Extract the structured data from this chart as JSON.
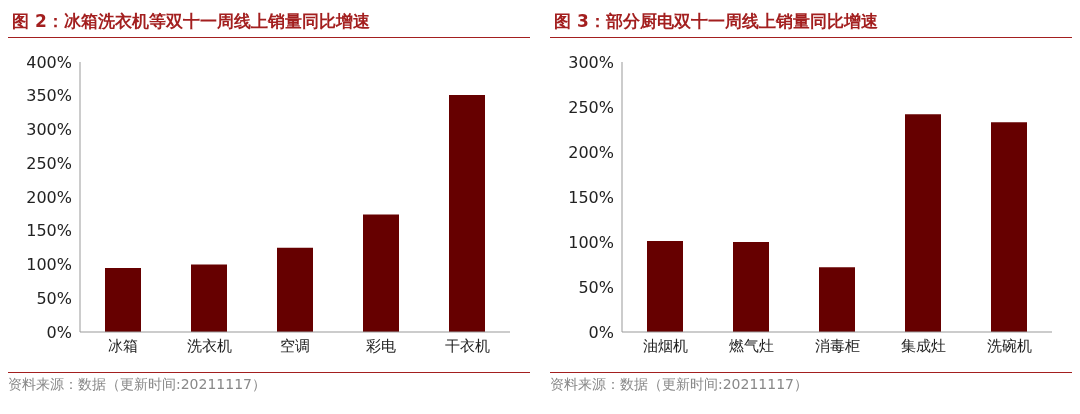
{
  "chart_data": [
    {
      "type": "bar",
      "title": "图 2：冰箱洗衣机等双十一周线上销量同比增速",
      "categories": [
        "冰箱",
        "洗衣机",
        "空调",
        "彩电",
        "干衣机"
      ],
      "values": [
        95,
        100,
        125,
        174,
        351
      ],
      "color": "#660000",
      "ylim": [
        0,
        400
      ],
      "yticks": [
        {
          "value": 0,
          "label": "0%"
        },
        {
          "value": 50,
          "label": "50%"
        },
        {
          "value": 100,
          "label": "100%"
        },
        {
          "value": 150,
          "label": "150%"
        },
        {
          "value": 200,
          "label": "200%"
        },
        {
          "value": 250,
          "label": "250%"
        },
        {
          "value": 300,
          "label": "300%"
        },
        {
          "value": 350,
          "label": "350%"
        },
        {
          "value": 400,
          "label": "400%"
        }
      ],
      "annotations": [
        "资料来源：数据（更新时间:20211117）"
      ]
    },
    {
      "type": "bar",
      "title": "图 3：部分厨电双十一周线上销量同比增速",
      "categories": [
        "油烟机",
        "燃气灶",
        "消毒柜",
        "集成灶",
        "洗碗机"
      ],
      "values": [
        101,
        100,
        72,
        242,
        233
      ],
      "color": "#660000",
      "ylim": [
        0,
        300
      ],
      "yticks": [
        {
          "value": 0,
          "label": "0%"
        },
        {
          "value": 50,
          "label": "50%"
        },
        {
          "value": 100,
          "label": "100%"
        },
        {
          "value": 150,
          "label": "150%"
        },
        {
          "value": 200,
          "label": "200%"
        },
        {
          "value": 250,
          "label": "250%"
        },
        {
          "value": 300,
          "label": "300%"
        }
      ],
      "annotations": [
        "资料来源：数据（更新时间:20211117）"
      ]
    }
  ]
}
